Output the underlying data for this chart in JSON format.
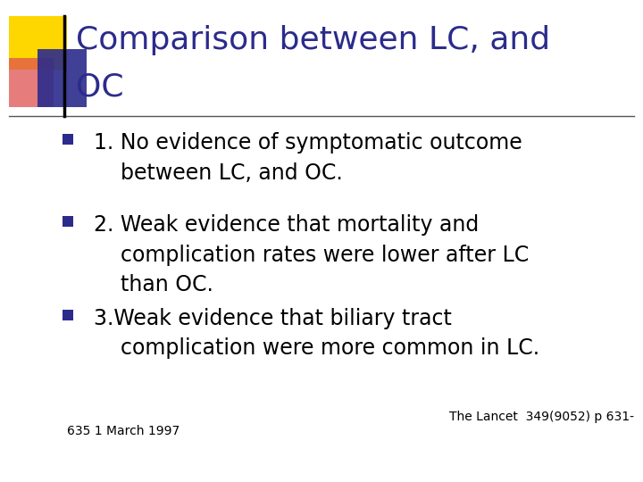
{
  "title_line1": "Comparison between LC, and",
  "title_line2": "OC",
  "title_color": "#2B2B8C",
  "background_color": "#FFFFFF",
  "bullet_color": "#2B2B8C",
  "bullet_points": [
    "1. No evidence of symptomatic outcome\n    between LC, and OC.",
    "2. Weak evidence that mortality and\n    complication rates were lower after LC\n    than OC.",
    "3.Weak evidence that biliary tract\n    complication were more common in LC."
  ],
  "body_text_color": "#000000",
  "footnote_right": "The Lancet  349(9052) p 631-",
  "footnote_left": "635 1 March 1997",
  "footnote_color": "#000000",
  "yellow_color": "#FFD700",
  "blue_color": "#2B2B8C",
  "red_color": "#E05050",
  "title_fontsize": 26,
  "body_fontsize": 17,
  "footnote_fontsize": 10
}
